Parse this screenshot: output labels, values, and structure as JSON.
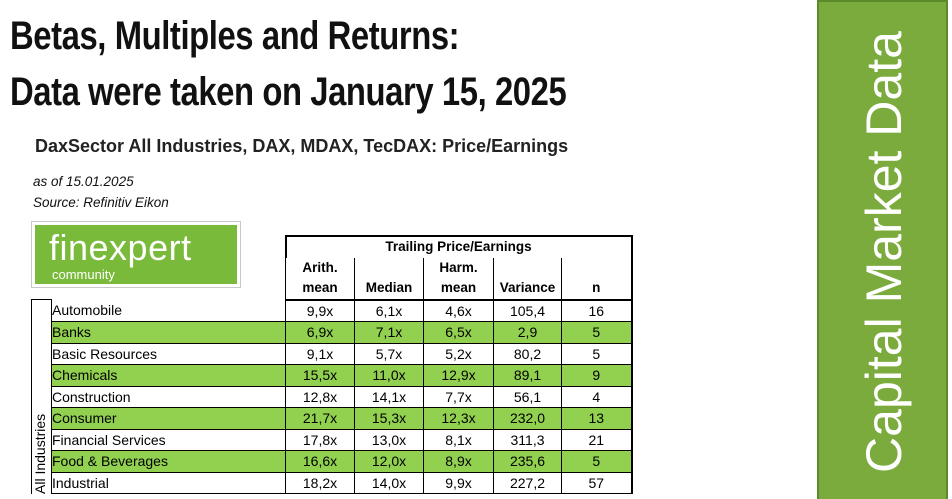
{
  "headline": {
    "line1": "Betas, Multiples and Returns:",
    "line2": "Data were taken on January 15, 2025"
  },
  "sheet": {
    "title": "DaxSector All Industries, DAX, MDAX, TecDAX: Price/Earnings",
    "as_of": "as of 15.01.2025",
    "source": "Source: Refinitiv Eikon"
  },
  "logo": {
    "main": "finexpert",
    "sub": "community"
  },
  "table": {
    "group_header": "Trailing Price/Earnings",
    "columns": [
      {
        "line1": "Arith.",
        "line2": "mean"
      },
      {
        "line1": "",
        "line2": "Median"
      },
      {
        "line1": "Harm.",
        "line2": "mean"
      },
      {
        "line1": "",
        "line2": "Variance"
      },
      {
        "line1": "",
        "line2": "n"
      }
    ],
    "side_label": "All Industries",
    "rows": [
      {
        "industry": "Automobile",
        "arith": "9,9x",
        "median": "6,1x",
        "harm": "4,6x",
        "variance": "105,4",
        "n": "16",
        "highlight": false
      },
      {
        "industry": "Banks",
        "arith": "6,9x",
        "median": "7,1x",
        "harm": "6,5x",
        "variance": "2,9",
        "n": "5",
        "highlight": true
      },
      {
        "industry": "Basic Resources",
        "arith": "9,1x",
        "median": "5,7x",
        "harm": "5,2x",
        "variance": "80,2",
        "n": "5",
        "highlight": false
      },
      {
        "industry": "Chemicals",
        "arith": "15,5x",
        "median": "11,0x",
        "harm": "12,9x",
        "variance": "89,1",
        "n": "9",
        "highlight": true
      },
      {
        "industry": "Construction",
        "arith": "12,8x",
        "median": "14,1x",
        "harm": "7,7x",
        "variance": "56,1",
        "n": "4",
        "highlight": false
      },
      {
        "industry": "Consumer",
        "arith": "21,7x",
        "median": "15,3x",
        "harm": "12,3x",
        "variance": "232,0",
        "n": "13",
        "highlight": true
      },
      {
        "industry": "Financial Services",
        "arith": "17,8x",
        "median": "13,0x",
        "harm": "8,1x",
        "variance": "311,3",
        "n": "21",
        "highlight": false
      },
      {
        "industry": "Food & Beverages",
        "arith": "16,6x",
        "median": "12,0x",
        "harm": "8,9x",
        "variance": "235,6",
        "n": "5",
        "highlight": true
      },
      {
        "industry": "Industrial",
        "arith": "18,2x",
        "median": "14,0x",
        "harm": "9,9x",
        "variance": "227,2",
        "n": "57",
        "highlight": false
      }
    ]
  },
  "side_banner": {
    "text": "Capital Market Data"
  },
  "colors": {
    "row_highlight": "#92d050",
    "logo_green": "#7aba3a",
    "banner_green": "#7aab3c"
  }
}
